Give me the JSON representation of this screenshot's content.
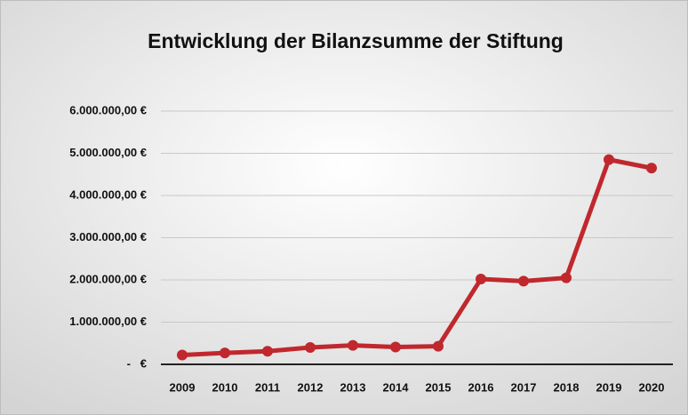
{
  "chart_data": {
    "type": "line",
    "title": "Entwicklung der Bilanzsumme der Stiftung",
    "categories": [
      "2009",
      "2010",
      "2011",
      "2012",
      "2013",
      "2014",
      "2015",
      "2016",
      "2017",
      "2018",
      "2019",
      "2020"
    ],
    "values": [
      220000,
      270000,
      310000,
      400000,
      450000,
      410000,
      430000,
      2020000,
      1970000,
      2050000,
      4850000,
      4650000
    ],
    "color": "#c0282d",
    "ylim": [
      0,
      6000000
    ],
    "yticks": [
      {
        "value": 0,
        "label": "-   €"
      },
      {
        "value": 1000000,
        "label": "1.000.000,00 €"
      },
      {
        "value": 2000000,
        "label": "2.000.000,00 €"
      },
      {
        "value": 3000000,
        "label": "3.000.000,00 €"
      },
      {
        "value": 4000000,
        "label": "4.000.000,00 €"
      },
      {
        "value": 5000000,
        "label": "5.000.000,00 €"
      },
      {
        "value": 6000000,
        "label": "6.000.000,00 €"
      }
    ],
    "grid": true
  }
}
